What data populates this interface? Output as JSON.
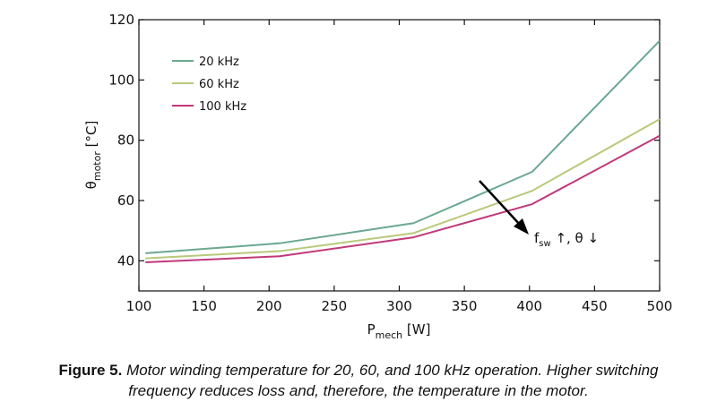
{
  "chart_data": {
    "type": "line",
    "xlabel_main": "P",
    "xlabel_sub": "mech",
    "xlabel_unit": " [W]",
    "ylabel_main": "θ",
    "ylabel_sub": "motor",
    "ylabel_unit": " [°C]",
    "xlim": [
      100,
      500
    ],
    "ylim": [
      30,
      120
    ],
    "xticks": [
      100,
      150,
      200,
      250,
      300,
      350,
      400,
      450,
      500
    ],
    "yticks": [
      40,
      60,
      80,
      100,
      120
    ],
    "grid": false,
    "legend_position": "top-left",
    "series": [
      {
        "name": "20 kHz",
        "color": "#6aa88f",
        "x": [
          105,
          208,
          311,
          402,
          500
        ],
        "y": [
          42.5,
          45.8,
          52.5,
          69.5,
          113
        ]
      },
      {
        "name": "60 kHz",
        "color": "#b8c97a",
        "x": [
          105,
          208,
          311,
          402,
          500
        ],
        "y": [
          40.8,
          43.2,
          49.2,
          63.2,
          87
        ]
      },
      {
        "name": "100 kHz",
        "color": "#c0397a",
        "x": [
          105,
          208,
          311,
          402,
          500
        ],
        "y": [
          39.5,
          41.5,
          47.8,
          58.8,
          81.5
        ]
      }
    ],
    "annotation": {
      "main": "f",
      "sub": "sw",
      "rest": " ↑, θ ↓"
    }
  },
  "caption": {
    "label": "Figure 5.",
    "text_line1": " Motor winding temperature for 20, 60, and 100 kHz operation. Higher switching",
    "text_line2": "frequency reduces loss and, therefore, the temperature in the motor."
  }
}
